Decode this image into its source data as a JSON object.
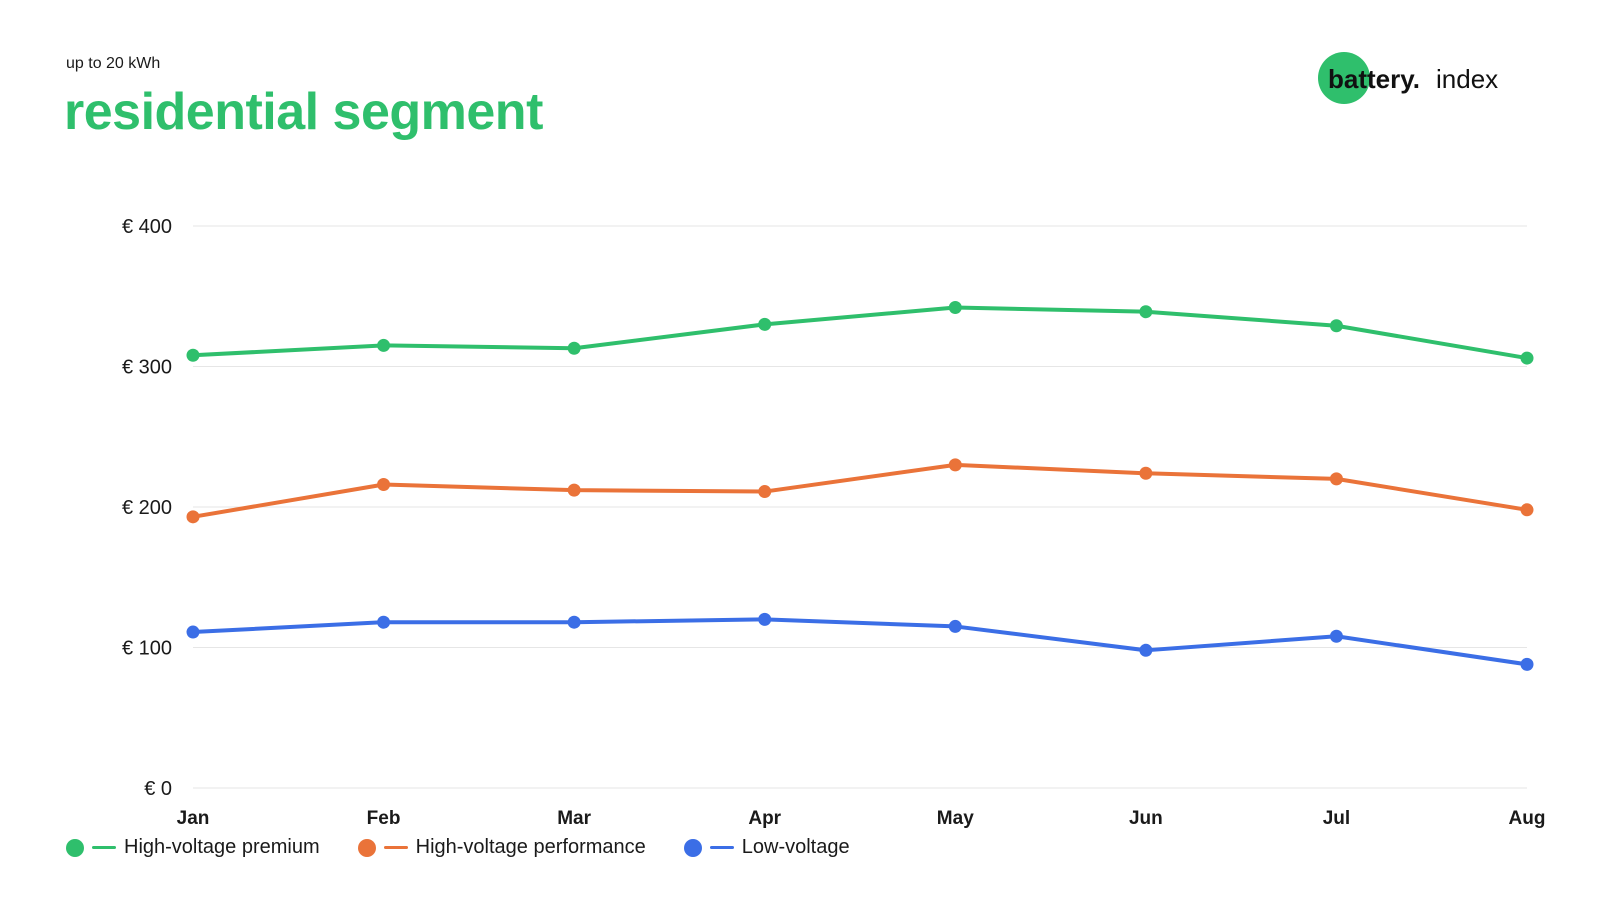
{
  "header": {
    "subtitle": "up to 20 kWh",
    "title": "residential segment"
  },
  "logo": {
    "part1": "battery.",
    "part2": "index"
  },
  "colors": {
    "green": "#2fbf6c",
    "orange": "#ea7339",
    "blue": "#3b6ee6",
    "grid": "#e6e6e6"
  },
  "chart_data": {
    "type": "line",
    "categories": [
      "Jan",
      "Feb",
      "Mar",
      "Apr",
      "May",
      "Jun",
      "Jul",
      "Aug"
    ],
    "ylim": [
      0,
      400
    ],
    "yticks": [
      0,
      100,
      200,
      300,
      400
    ],
    "ytick_labels": [
      "€ 0",
      "€ 100",
      "€ 200",
      "€ 300",
      "€ 400"
    ],
    "grid": true,
    "legend_position": "bottom-left",
    "series": [
      {
        "name": "High-voltage premium",
        "color": "#2fbf6c",
        "values": [
          308,
          315,
          313,
          330,
          342,
          339,
          329,
          306
        ]
      },
      {
        "name": "High-voltage performance",
        "color": "#ea7339",
        "values": [
          193,
          216,
          212,
          211,
          230,
          224,
          220,
          198
        ]
      },
      {
        "name": "Low-voltage",
        "color": "#3b6ee6",
        "values": [
          111,
          118,
          118,
          120,
          115,
          98,
          108,
          88
        ]
      }
    ]
  }
}
